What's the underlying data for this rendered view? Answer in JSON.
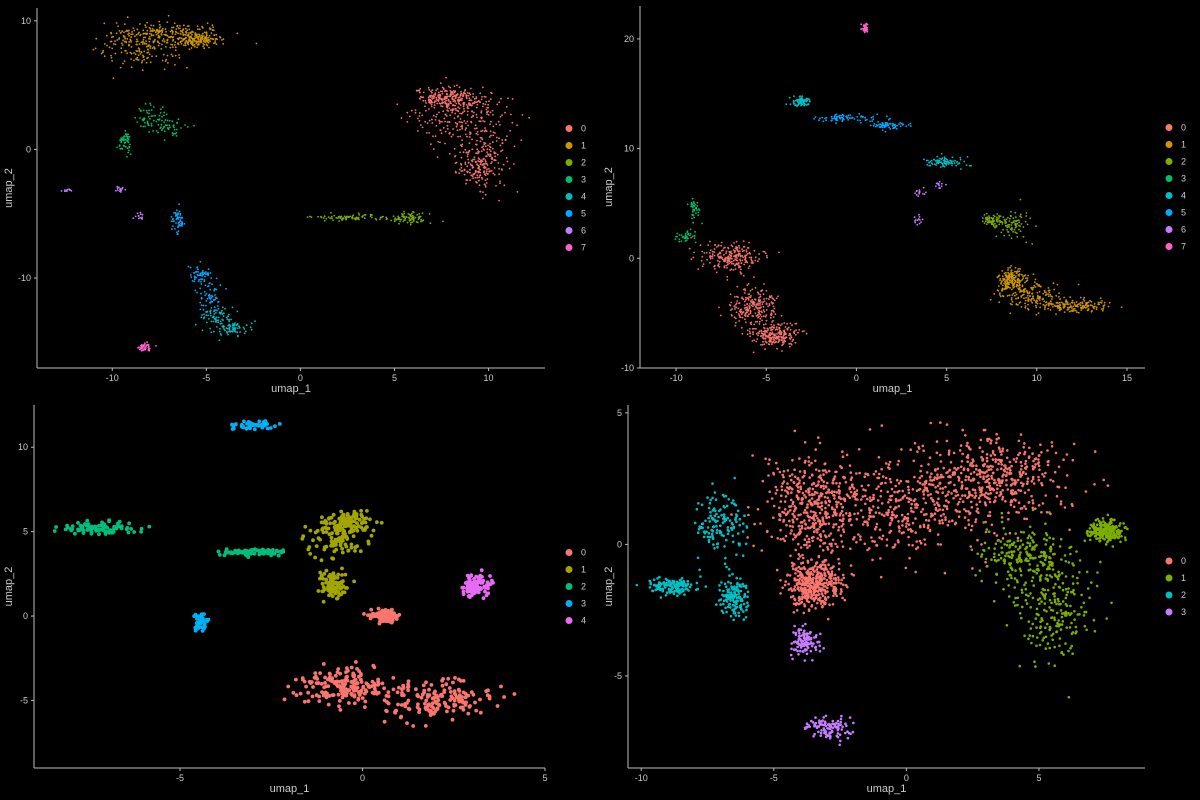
{
  "colors": {
    "palette8": [
      "#F8766D",
      "#CD9600",
      "#7CAE00",
      "#00BE67",
      "#00BFC4",
      "#00A9FF",
      "#C77CFF",
      "#FF61CC"
    ],
    "palette5": [
      "#F8766D",
      "#A3A500",
      "#00BF7D",
      "#00B0F6",
      "#E76BF3"
    ],
    "palette4": [
      "#F8766D",
      "#7CAE00",
      "#00BFC4",
      "#C77CFF"
    ],
    "background": "#000000"
  },
  "chart_data": [
    {
      "type": "scatter",
      "xlabel": "umap_1",
      "ylabel": "umap_2",
      "xlim": [
        -14,
        13
      ],
      "ylim": [
        -17,
        11
      ],
      "xticks": [
        -10,
        -5,
        0,
        5,
        10
      ],
      "yticks": [
        -10,
        0,
        10
      ],
      "legend": [
        "0",
        "1",
        "2",
        "3",
        "4",
        "5",
        "6",
        "7"
      ],
      "palette": "palette8",
      "clusters": [
        {
          "label": "0",
          "n": 700,
          "blobs": [
            [
              8.5,
              2.5,
              2.4,
              2.0
            ],
            [
              9.6,
              -1.0,
              1.2,
              2.0
            ],
            [
              8.0,
              4.0,
              1.8,
              0.7
            ]
          ]
        },
        {
          "label": "1",
          "n": 520,
          "blobs": [
            [
              -8.5,
              8.0,
              2.0,
              1.5
            ],
            [
              -7.0,
              9.0,
              2.5,
              0.8
            ],
            [
              -5.5,
              8.5,
              1.2,
              0.5
            ]
          ]
        },
        {
          "label": "2",
          "n": 160,
          "blobs": [
            [
              2.7,
              -5.3,
              1.8,
              0.2
            ],
            [
              5.8,
              -5.3,
              0.9,
              0.4
            ]
          ]
        },
        {
          "label": "3",
          "n": 150,
          "blobs": [
            [
              -8.0,
              2.5,
              0.8,
              0.8
            ],
            [
              -7.0,
              1.8,
              1.0,
              0.6
            ],
            [
              -9.3,
              0.5,
              0.3,
              0.8
            ]
          ]
        },
        {
          "label": "4",
          "n": 140,
          "blobs": [
            [
              -3.5,
              -14.0,
              0.8,
              0.6
            ],
            [
              -4.5,
              -13.0,
              0.8,
              0.8
            ]
          ]
        },
        {
          "label": "5",
          "n": 170,
          "blobs": [
            [
              -5.3,
              -9.7,
              0.5,
              0.6
            ],
            [
              -4.8,
              -11.5,
              0.6,
              1.2
            ],
            [
              -6.5,
              -5.5,
              0.3,
              0.8
            ]
          ]
        },
        {
          "label": "6",
          "n": 40,
          "blobs": [
            [
              -9.6,
              -3.0,
              0.4,
              0.4
            ],
            [
              -8.6,
              -5.3,
              0.3,
              0.3
            ],
            [
              -12.4,
              -3.2,
              0.4,
              0.15
            ]
          ]
        },
        {
          "label": "7",
          "n": 50,
          "blobs": [
            [
              -8.3,
              -15.4,
              0.3,
              0.3
            ]
          ]
        }
      ]
    },
    {
      "type": "scatter",
      "xlabel": "umap_1",
      "ylabel": "umap_2",
      "xlim": [
        -12,
        16
      ],
      "ylim": [
        -10,
        23
      ],
      "xticks": [
        -10,
        -5,
        0,
        5,
        10,
        15
      ],
      "yticks": [
        -10,
        0,
        10,
        20
      ],
      "legend": [
        "0",
        "1",
        "2",
        "3",
        "4",
        "5",
        "6",
        "7"
      ],
      "palette": "palette8",
      "clusters": [
        {
          "label": "0",
          "n": 700,
          "blobs": [
            [
              -7.0,
              0.0,
              1.5,
              1.2
            ],
            [
              -5.7,
              -4.5,
              1.2,
              1.6
            ],
            [
              -4.5,
              -7.0,
              1.2,
              1.0
            ]
          ]
        },
        {
          "label": "1",
          "n": 500,
          "blobs": [
            [
              9.5,
              -3.3,
              1.8,
              1.2
            ],
            [
              12.0,
              -4.3,
              2.0,
              0.5
            ],
            [
              8.6,
              -2.0,
              0.8,
              1.0
            ]
          ]
        },
        {
          "label": "2",
          "n": 150,
          "blobs": [
            [
              8.7,
              3.0,
              0.9,
              1.3
            ],
            [
              7.6,
              3.5,
              0.6,
              0.5
            ]
          ]
        },
        {
          "label": "3",
          "n": 80,
          "blobs": [
            [
              -9.5,
              2.0,
              0.6,
              0.5
            ],
            [
              -9.0,
              4.5,
              0.3,
              0.9
            ]
          ]
        },
        {
          "label": "4",
          "n": 180,
          "blobs": [
            [
              -3.0,
              14.3,
              0.5,
              0.4
            ],
            [
              5.0,
              8.8,
              0.9,
              0.5
            ]
          ]
        },
        {
          "label": "5",
          "n": 150,
          "blobs": [
            [
              1.8,
              12.1,
              0.8,
              0.3
            ],
            [
              -0.5,
              12.8,
              1.5,
              0.3
            ]
          ]
        },
        {
          "label": "6",
          "n": 40,
          "blobs": [
            [
              3.5,
              6.0,
              0.3,
              0.4
            ],
            [
              4.6,
              6.6,
              0.3,
              0.4
            ],
            [
              3.5,
              3.6,
              0.3,
              0.5
            ]
          ]
        },
        {
          "label": "7",
          "n": 40,
          "blobs": [
            [
              0.5,
              21.0,
              0.2,
              0.4
            ]
          ]
        }
      ]
    },
    {
      "type": "scatter",
      "xlabel": "umap_1",
      "ylabel": "umap_2",
      "xlim": [
        -9,
        5
      ],
      "ylim": [
        -9,
        12.5
      ],
      "xticks": [
        -5,
        0,
        5
      ],
      "yticks": [
        -5,
        0,
        5,
        10
      ],
      "legend": [
        "0",
        "1",
        "2",
        "3",
        "4"
      ],
      "palette": "palette5",
      "clusters": [
        {
          "label": "0",
          "n": 520,
          "blobs": [
            [
              2.0,
              -5.0,
              1.5,
              1.2
            ],
            [
              -0.5,
              -4.2,
              1.1,
              1.0
            ],
            [
              0.6,
              0.0,
              0.3,
              0.3
            ]
          ]
        },
        {
          "label": "1",
          "n": 280,
          "blobs": [
            [
              -0.7,
              4.5,
              0.8,
              1.0
            ],
            [
              -0.8,
              1.8,
              0.3,
              0.8
            ],
            [
              -0.4,
              5.6,
              0.6,
              0.6
            ]
          ]
        },
        {
          "label": "2",
          "n": 190,
          "blobs": [
            [
              -7.2,
              5.2,
              0.9,
              0.3
            ],
            [
              -3.0,
              3.8,
              0.8,
              0.2
            ]
          ]
        },
        {
          "label": "3",
          "n": 90,
          "blobs": [
            [
              -3.0,
              11.3,
              0.6,
              0.25
            ],
            [
              -4.4,
              -0.4,
              0.2,
              0.5
            ]
          ]
        },
        {
          "label": "4",
          "n": 110,
          "blobs": [
            [
              3.1,
              1.8,
              0.35,
              0.6
            ]
          ]
        }
      ]
    },
    {
      "type": "scatter",
      "xlabel": "umap_1",
      "ylabel": "umap_2",
      "xlim": [
        -10.5,
        9
      ],
      "ylim": [
        -8.5,
        5.3
      ],
      "xticks": [
        -10,
        -5,
        0,
        5
      ],
      "yticks": [
        -5,
        0,
        5
      ],
      "legend": [
        "0",
        "1",
        "2",
        "3"
      ],
      "palette": "palette4",
      "clusters": [
        {
          "label": "0",
          "n": 1700,
          "blobs": [
            [
              0.0,
              1.5,
              3.5,
              1.8
            ],
            [
              3.5,
              2.5,
              2.5,
              1.5
            ],
            [
              -3.5,
              1.5,
              1.6,
              1.7
            ],
            [
              -3.5,
              -1.5,
              1.0,
              0.8
            ]
          ]
        },
        {
          "label": "1",
          "n": 650,
          "blobs": [
            [
              5.5,
              -2.5,
              1.5,
              1.8
            ],
            [
              4.5,
              -0.5,
              1.5,
              1.0
            ],
            [
              7.5,
              0.5,
              0.6,
              0.4
            ]
          ]
        },
        {
          "label": "2",
          "n": 420,
          "blobs": [
            [
              -7.0,
              0.8,
              0.8,
              1.2
            ],
            [
              -8.8,
              -1.6,
              0.8,
              0.3
            ],
            [
              -6.5,
              -2.0,
              0.5,
              0.6
            ]
          ]
        },
        {
          "label": "3",
          "n": 220,
          "blobs": [
            [
              -3.8,
              -3.7,
              0.5,
              0.5
            ],
            [
              -3.0,
              -7.0,
              0.8,
              0.4
            ]
          ]
        }
      ]
    }
  ],
  "panels": [
    {
      "legend_title": ""
    },
    {
      "legend_title": ""
    },
    {
      "legend_title": ""
    },
    {
      "legend_title": ""
    }
  ]
}
